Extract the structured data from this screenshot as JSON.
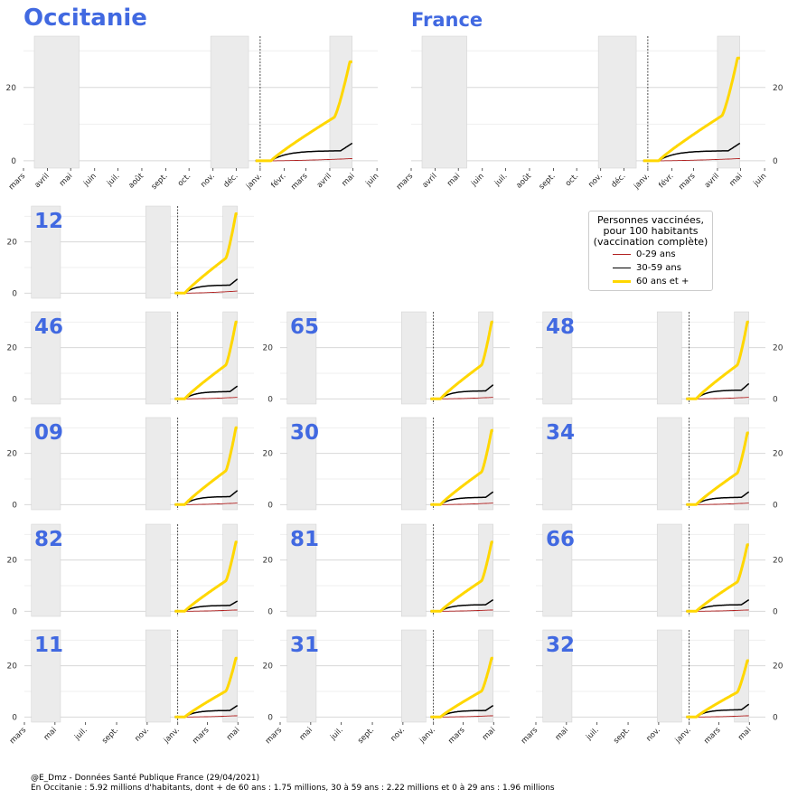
{
  "chart_data": {
    "type": "line",
    "ylim": [
      -2,
      34
    ],
    "yticks": [
      0,
      20
    ],
    "grid": true,
    "legend_placement": "upper-right panel area",
    "legend": {
      "title": [
        "Personnes vaccinées,",
        "pour 100 habitants",
        "(vaccination complète)"
      ],
      "entries": [
        {
          "label": "0-29 ans",
          "color": "#b22222"
        },
        {
          "label": "30-59 ans",
          "color": "#000000"
        },
        {
          "label": "60 ans et +",
          "color": "#ffd700"
        }
      ]
    },
    "month_tick_labels_full": [
      "mars",
      "avril",
      "mai",
      "juin",
      "juil.",
      "août",
      "sept.",
      "oct.",
      "nov.",
      "déc.",
      "janv.",
      "févr.",
      "mars",
      "avril",
      "mai",
      "juin"
    ],
    "month_tick_labels_small": [
      "mars",
      "mai",
      "juil.",
      "sept.",
      "nov.",
      "janv.",
      "mars",
      "mai"
    ],
    "shaded_periods": [
      "mi-mars – mi-mai 2020 (confinement 1)",
      "fin oct. – mi-déc. 2020 (confinement 2)",
      "avril 2021 (confinement 3)"
    ],
    "panels": [
      {
        "label": "Occitanie",
        "is_region": true,
        "final": [
          0.6,
          4.8,
          27
        ]
      },
      {
        "label": "France",
        "is_region": true,
        "final": [
          0.6,
          4.8,
          28
        ]
      },
      {
        "label": "12",
        "final": [
          0.8,
          5.5,
          31
        ]
      },
      {
        "label": "46",
        "final": [
          0.6,
          5.0,
          30
        ]
      },
      {
        "label": "65",
        "final": [
          0.6,
          5.5,
          30
        ]
      },
      {
        "label": "48",
        "final": [
          0.6,
          6.0,
          30
        ]
      },
      {
        "label": "09",
        "final": [
          0.6,
          5.5,
          30
        ]
      },
      {
        "label": "30",
        "final": [
          0.6,
          5.0,
          29
        ]
      },
      {
        "label": "34",
        "final": [
          0.6,
          5.0,
          28
        ]
      },
      {
        "label": "82",
        "final": [
          0.5,
          4.0,
          27
        ]
      },
      {
        "label": "81",
        "final": [
          0.5,
          4.5,
          27
        ]
      },
      {
        "label": "66",
        "final": [
          0.5,
          4.5,
          26
        ]
      },
      {
        "label": "11",
        "final": [
          0.5,
          4.5,
          23
        ]
      },
      {
        "label": "31",
        "final": [
          0.5,
          4.5,
          23
        ]
      },
      {
        "label": "32",
        "final": [
          0.5,
          5.0,
          22
        ]
      }
    ]
  },
  "footer": {
    "line1": "@E_Dmz - Données Santé Publique France (29/04/2021)",
    "line2": "En Occitanie : 5.92 millions d'habitants, dont + de 60 ans : 1.75 millions, 30 à 59 ans : 2.22 millions et 0 à 29 ans : 1.96 millions"
  }
}
